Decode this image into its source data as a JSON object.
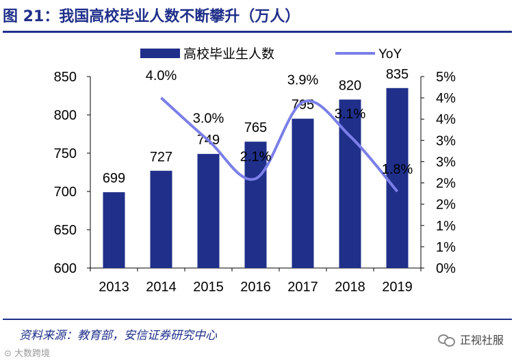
{
  "header": {
    "title": "图 21：我国高校毕业人数不断攀升（万人）"
  },
  "footer": {
    "source": "资料来源：教育部，安信证券研究中心",
    "watermark_right": "正视社服",
    "watermark_left": "大数跨境"
  },
  "chart_data": {
    "type": "bar",
    "title": "我国高校毕业人数不断攀升（万人）",
    "categories": [
      "2013",
      "2014",
      "2015",
      "2016",
      "2017",
      "2018",
      "2019"
    ],
    "series": [
      {
        "name": "高校毕业生人数",
        "axis": "left",
        "kind": "bar",
        "values": [
          699,
          727,
          749,
          765,
          795,
          820,
          835
        ],
        "labels": [
          "699",
          "727",
          "749",
          "765",
          "795",
          "820",
          "835"
        ]
      },
      {
        "name": "YoY",
        "axis": "right",
        "kind": "line",
        "values": [
          null,
          4.0,
          3.0,
          2.1,
          3.9,
          3.1,
          1.8
        ],
        "labels": [
          null,
          "4.0%",
          "3.0%",
          "2.1%",
          "3.9%",
          "3.1%",
          "1.8%"
        ]
      }
    ],
    "y_left": {
      "min": 600,
      "max": 850,
      "ticks": [
        "600",
        "650",
        "700",
        "750",
        "800",
        "850"
      ]
    },
    "y_right": {
      "min": 0,
      "max": 4.5,
      "ticks": [
        "0%",
        "1%",
        "1%",
        "2%",
        "2%",
        "3%",
        "3%",
        "4%",
        "4%",
        "5%"
      ]
    },
    "legend": {
      "position": "top"
    },
    "colors": {
      "bar": "#1f2f8a",
      "line": "#7b7fe8",
      "title": "#1f2f8a"
    }
  }
}
